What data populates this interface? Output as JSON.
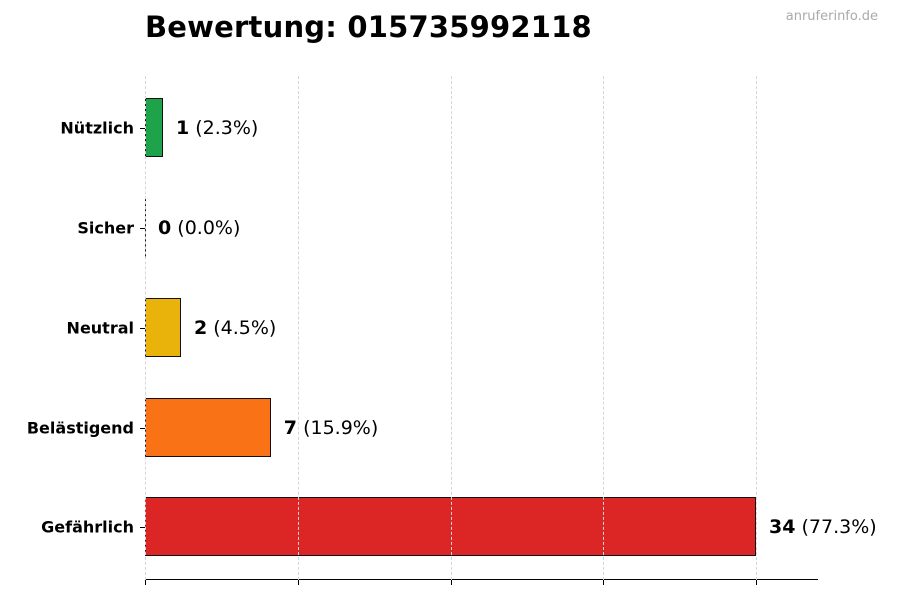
{
  "header": {
    "title": "Bewertung: 015735992118",
    "watermark": "anruferinfo.de"
  },
  "chart_data": {
    "type": "bar",
    "orientation": "horizontal",
    "title": "Bewertung: 015735992118",
    "xlabel": "",
    "ylabel": "",
    "categories": [
      "Nützlich",
      "Sicher",
      "Neutral",
      "Belästigend",
      "Gefährlich"
    ],
    "values": [
      1,
      0,
      2,
      7,
      34
    ],
    "percentages": [
      "2.3%",
      "0.0%",
      "4.5%",
      "15.9%",
      "77.3%"
    ],
    "colors": [
      "#1ea34a",
      "#9e9e9e",
      "#e9b30c",
      "#f97316",
      "#dc2626"
    ],
    "value_labels": [
      "1 (2.3%)",
      "0 (0.0%)",
      "2 (4.5%)",
      "7 (15.9%)",
      "34 (77.3%)"
    ],
    "xlim": [
      0,
      44
    ],
    "x_gridlines": [
      0,
      8.5,
      17,
      25.5,
      34
    ],
    "grid": "vertical dashed",
    "x_tick_labels_visible": false,
    "legend": "none"
  },
  "bars": [
    {
      "label": "Nützlich",
      "count": "1",
      "pct": "(2.3%)",
      "value": 1,
      "color": "#1ea34a"
    },
    {
      "label": "Sicher",
      "count": "0",
      "pct": "(0.0%)",
      "value": 0,
      "color": "#9e9e9e"
    },
    {
      "label": "Neutral",
      "count": "2",
      "pct": "(4.5%)",
      "value": 2,
      "color": "#e9b30c"
    },
    {
      "label": "Belästigend",
      "count": "7",
      "pct": "(15.9%)",
      "value": 7,
      "color": "#f97316"
    },
    {
      "label": "Gefährlich",
      "count": "34",
      "pct": "(77.3%)",
      "value": 34,
      "color": "#dc2626"
    }
  ]
}
